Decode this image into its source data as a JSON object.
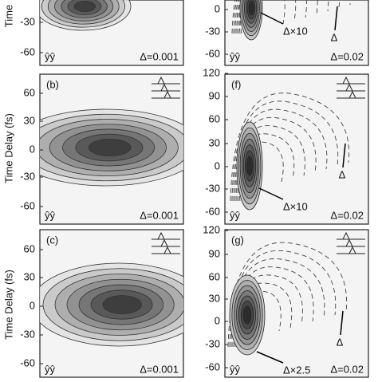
{
  "y_axis_labels": [
    "Time",
    "Time Delay (fs)",
    "Time Delay (fs)"
  ],
  "panels": [
    {
      "label": null,
      "ticks": [
        "-30",
        "-60"
      ],
      "polarization": "ŷŷ",
      "delta": "Δ=0.001",
      "annotations": []
    },
    {
      "label": "(b)",
      "ticks": [
        "60",
        "30",
        "0",
        "-30",
        "-60"
      ],
      "polarization": "ŷŷ",
      "delta": "Δ=0.001",
      "annotations": []
    },
    {
      "label": "(c)",
      "ticks": [
        "60",
        "30",
        "0",
        "-30",
        "-60"
      ],
      "polarization": "ŷŷ",
      "delta": "Δ=0.001",
      "annotations": []
    },
    {
      "label": null,
      "ticks": [
        "0",
        "-30",
        "-60"
      ],
      "polarization": "ŷŷ",
      "delta": "Δ=0.02",
      "annotations": [
        "Δ×10",
        "Δ"
      ]
    },
    {
      "label": "(f)",
      "ticks": [
        "120",
        "90",
        "60",
        "30",
        "0",
        "-30",
        "-60"
      ],
      "polarization": "ŷŷ",
      "delta": "Δ=0.02",
      "annotations": [
        "Δ×10",
        "Δ"
      ]
    },
    {
      "label": "(g)",
      "ticks": [
        "120",
        "90",
        "60",
        "30",
        "0",
        "-30",
        "-60"
      ],
      "polarization": "ŷŷ",
      "delta": "Δ=0.02",
      "annotations": [
        "Δ×2.5",
        "Δ"
      ]
    }
  ]
}
